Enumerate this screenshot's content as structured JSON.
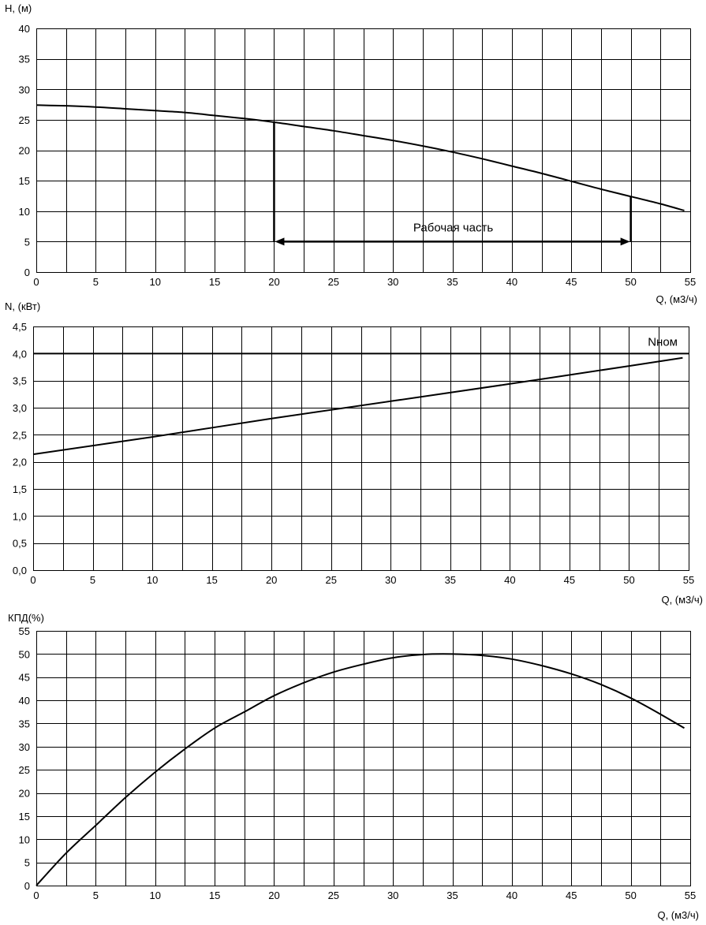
{
  "chart_data": [
    {
      "type": "line",
      "ylabel": "H, (м)",
      "xlabel": "Q, (м3/ч)",
      "xlim": [
        0,
        55
      ],
      "ylim": [
        0,
        40
      ],
      "xticks": [
        "0",
        "5",
        "10",
        "15",
        "20",
        "25",
        "30",
        "35",
        "40",
        "45",
        "50",
        "55"
      ],
      "yticks": [
        "0",
        "5",
        "10",
        "15",
        "20",
        "25",
        "30",
        "35",
        "40"
      ],
      "grid": true,
      "series": [
        {
          "x": [
            0,
            2.5,
            5,
            7.5,
            10,
            12.5,
            15,
            17.5,
            20,
            22.5,
            25,
            27.5,
            30,
            32.5,
            35,
            37.5,
            40,
            42.5,
            45,
            47.5,
            50,
            52.5,
            54.5
          ],
          "y": [
            27.4,
            27.3,
            27.1,
            26.8,
            26.5,
            26.2,
            25.7,
            25.2,
            24.6,
            23.9,
            23.2,
            22.4,
            21.6,
            20.7,
            19.7,
            18.6,
            17.4,
            16.2,
            14.9,
            13.6,
            12.4,
            11.2,
            10.1
          ]
        }
      ],
      "working_range": {
        "q_from": 20,
        "q_to": 50,
        "h_at_from": 24.6,
        "h_at_to": 12.4,
        "arrow_level": 5,
        "label": "Рабочая часть"
      }
    },
    {
      "type": "line",
      "ylabel": "N, (кВт)",
      "xlabel": "Q, (м3/ч)",
      "xlim": [
        0,
        55
      ],
      "ylim": [
        0,
        4.5
      ],
      "xticks": [
        "0",
        "5",
        "10",
        "15",
        "20",
        "25",
        "30",
        "35",
        "40",
        "45",
        "50",
        "55"
      ],
      "yticks": [
        "0,0",
        "0,5",
        "1,0",
        "1,5",
        "2,0",
        "2,5",
        "3,0",
        "3,5",
        "4,0",
        "4,5"
      ],
      "grid": true,
      "series": [
        {
          "x": [
            0,
            10,
            20,
            30,
            40,
            50,
            54.5
          ],
          "y": [
            2.14,
            2.46,
            2.8,
            3.12,
            3.44,
            3.77,
            3.92
          ]
        }
      ],
      "reference_line": {
        "y": 4.0,
        "label": "Nном"
      }
    },
    {
      "type": "line",
      "ylabel": "КПД(%)",
      "xlabel": "Q, (м3/ч)",
      "xlim": [
        0,
        55
      ],
      "ylim": [
        0,
        55
      ],
      "xticks": [
        "0",
        "5",
        "10",
        "15",
        "20",
        "25",
        "30",
        "35",
        "40",
        "45",
        "50",
        "55"
      ],
      "yticks": [
        "0",
        "5",
        "10",
        "15",
        "20",
        "25",
        "30",
        "35",
        "40",
        "45",
        "50",
        "55"
      ],
      "grid": true,
      "series": [
        {
          "x": [
            0,
            2.5,
            5,
            7.5,
            10,
            12.5,
            15,
            17.5,
            20,
            22.5,
            25,
            27.5,
            30,
            32.5,
            35,
            37.5,
            40,
            42.5,
            45,
            47.5,
            50,
            52.5,
            54.5
          ],
          "y": [
            0,
            7,
            13,
            19,
            24.5,
            29.5,
            34,
            37.5,
            41,
            43.8,
            46.1,
            47.8,
            49.2,
            49.9,
            50.0,
            49.7,
            48.9,
            47.5,
            45.7,
            43.4,
            40.5,
            37,
            34
          ]
        }
      ]
    }
  ]
}
